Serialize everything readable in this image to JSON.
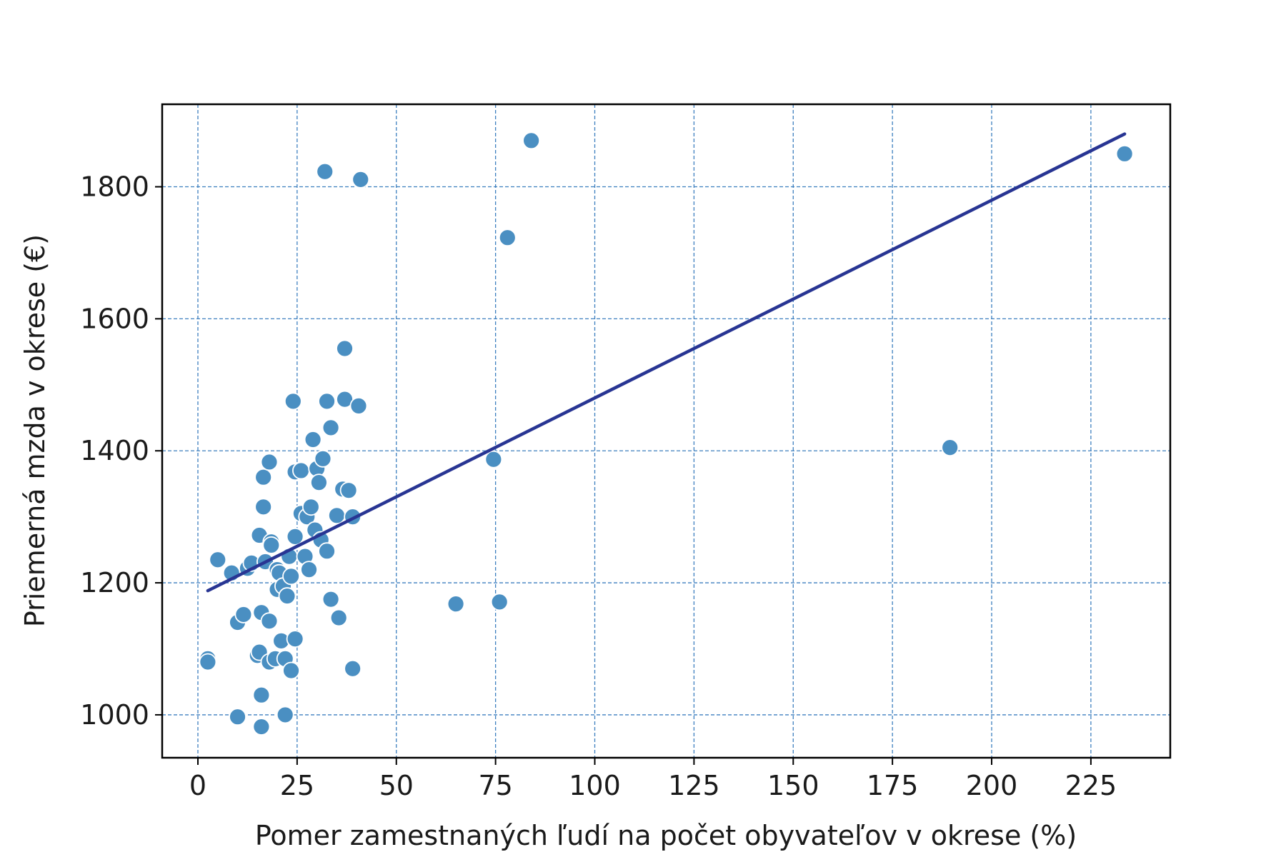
{
  "chart_data": {
    "type": "scatter",
    "title": "",
    "xlabel": "Pomer zamestnaných ľudí na počet obyvateľov v okrese (%)",
    "ylabel": "Priemerná mzda v okrese (€)",
    "xlim": [
      -9,
      245
    ],
    "ylim": [
      935,
      1925
    ],
    "xticks": [
      0,
      25,
      50,
      75,
      100,
      125,
      150,
      175,
      200,
      225
    ],
    "yticks": [
      1000,
      1200,
      1400,
      1600,
      1800
    ],
    "grid": true,
    "colors": {
      "points": "#4a8fc2",
      "point_edge": "#ffffff",
      "line": "#283593",
      "grid": "#3d7fbf"
    },
    "points": [
      [
        2.5,
        1085
      ],
      [
        2.5,
        1080
      ],
      [
        5,
        1235
      ],
      [
        8.5,
        1215
      ],
      [
        10,
        997
      ],
      [
        10,
        1140
      ],
      [
        11.5,
        1152
      ],
      [
        12.5,
        1222
      ],
      [
        13.5,
        1230
      ],
      [
        15,
        1090
      ],
      [
        15.5,
        1095
      ],
      [
        15.5,
        1272
      ],
      [
        16,
        1030
      ],
      [
        16,
        1155
      ],
      [
        16,
        982
      ],
      [
        16.5,
        1360
      ],
      [
        16.5,
        1315
      ],
      [
        17,
        1232
      ],
      [
        18,
        1383
      ],
      [
        18,
        1142
      ],
      [
        18,
        1080
      ],
      [
        18.5,
        1262
      ],
      [
        18.5,
        1257
      ],
      [
        19.5,
        1085
      ],
      [
        20,
        1220
      ],
      [
        20,
        1190
      ],
      [
        20.5,
        1215
      ],
      [
        21,
        1112
      ],
      [
        21.5,
        1195
      ],
      [
        22,
        1000
      ],
      [
        22,
        1085
      ],
      [
        22.5,
        1180
      ],
      [
        23,
        1240
      ],
      [
        23.5,
        1067
      ],
      [
        23.5,
        1210
      ],
      [
        24,
        1475
      ],
      [
        24.5,
        1115
      ],
      [
        24.5,
        1270
      ],
      [
        24.5,
        1368
      ],
      [
        26,
        1370
      ],
      [
        26,
        1305
      ],
      [
        27,
        1240
      ],
      [
        27.5,
        1300
      ],
      [
        28,
        1220
      ],
      [
        28.5,
        1315
      ],
      [
        29,
        1417
      ],
      [
        29.5,
        1280
      ],
      [
        30,
        1373
      ],
      [
        30.5,
        1352
      ],
      [
        31,
        1265
      ],
      [
        31.5,
        1388
      ],
      [
        32,
        1823
      ],
      [
        32.5,
        1475
      ],
      [
        32.5,
        1248
      ],
      [
        33.5,
        1175
      ],
      [
        33.5,
        1435
      ],
      [
        35,
        1302
      ],
      [
        35.5,
        1147
      ],
      [
        36.5,
        1342
      ],
      [
        37,
        1478
      ],
      [
        37,
        1555
      ],
      [
        38,
        1340
      ],
      [
        39,
        1300
      ],
      [
        39,
        1070
      ],
      [
        40.5,
        1468
      ],
      [
        41,
        1811
      ],
      [
        65,
        1168
      ],
      [
        74.5,
        1387
      ],
      [
        76,
        1171
      ],
      [
        78,
        1723
      ],
      [
        84,
        1870
      ],
      [
        189.5,
        1405
      ],
      [
        233.5,
        1850
      ]
    ],
    "trendline": {
      "x": [
        2.5,
        233.5
      ],
      "y": [
        1188,
        1880
      ]
    }
  }
}
